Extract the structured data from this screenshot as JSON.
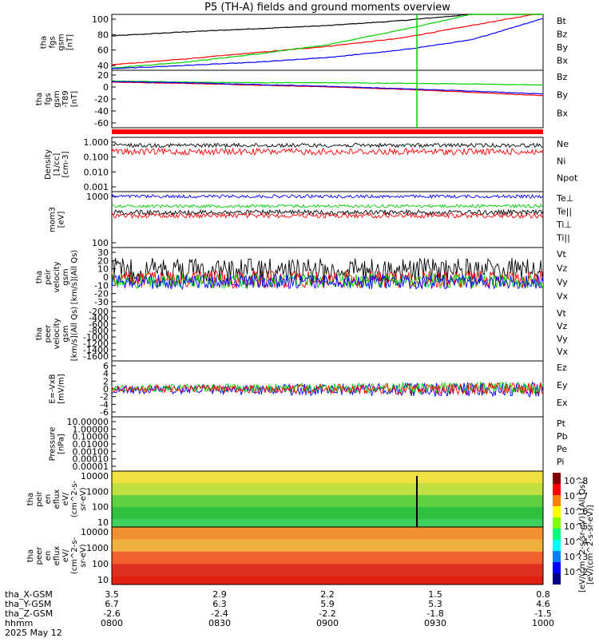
{
  "title": "P5 (TH-A) fields and ground moments overview",
  "date": "2025 May 12",
  "colors": {
    "black": "#000000",
    "red": "#ff0000",
    "green": "#00d000",
    "blue": "#0000ff"
  },
  "chart_data": [
    {
      "type": "line",
      "ylabel": [
        "tha",
        "fgs",
        "gsm",
        "[nT]"
      ],
      "yticks": [
        "100",
        "80",
        "60",
        "40"
      ],
      "ylim": [
        30,
        100
      ],
      "legend": [
        "Bt",
        "Bz",
        "By",
        "Bx"
      ],
      "series": [
        {
          "name": "Bt",
          "values": [
            73,
            78,
            82,
            86,
            92,
            100,
            105
          ]
        },
        {
          "name": "Bz",
          "values": [
            37,
            44,
            52,
            60,
            70,
            86,
            102
          ]
        },
        {
          "name": "By",
          "values": [
            33,
            40,
            50,
            62,
            80,
            100,
            110
          ]
        },
        {
          "name": "Bx",
          "values": [
            32,
            36,
            40,
            46,
            55,
            68,
            95
          ]
        }
      ]
    },
    {
      "type": "line",
      "ylabel": [
        "tha",
        "fgs",
        "gsm",
        "-T89",
        "[nT]"
      ],
      "yticks": [
        "20",
        "0",
        "-20",
        "-40",
        "-60"
      ],
      "ylim": [
        -75,
        22
      ],
      "legend": [
        "Bz",
        "By",
        "Bx"
      ],
      "series": [
        {
          "name": "Bz",
          "values": [
            2,
            0,
            -3,
            -6,
            -10,
            -15,
            -21
          ]
        },
        {
          "name": "By",
          "values": [
            4,
            2,
            1,
            1,
            0,
            -1,
            -3
          ]
        },
        {
          "name": "Bx",
          "values": [
            3,
            1,
            -2,
            -5,
            -9,
            -13,
            -18
          ]
        }
      ]
    },
    {
      "type": "line",
      "ylabel": [
        "Density",
        "[1/cc]",
        "[cm-3]"
      ],
      "yticks": [
        "1.000",
        "0.100",
        "0.010",
        "0.001"
      ],
      "scale": "log",
      "legend": [
        "Ne",
        "Ni",
        "Npot"
      ]
    },
    {
      "type": "line",
      "ylabel": [
        "mom3",
        "[eV]"
      ],
      "yticks": [
        "1000",
        "100"
      ],
      "scale": "log",
      "legend": [
        "Te⊥",
        "Te||",
        "Ti⊥",
        "Ti||"
      ]
    },
    {
      "type": "line",
      "ylabel": [
        "tha",
        "peir",
        "velocity",
        "gsm",
        "[km/s](All Qs)"
      ],
      "yticks": [
        "30",
        "20",
        "10",
        "0",
        "-10",
        "-20",
        "-30"
      ],
      "ylim": [
        -30,
        38
      ],
      "legend": [
        "Vt",
        "Vz",
        "Vy",
        "Vx"
      ]
    },
    {
      "type": "line",
      "ylabel": [
        "tha",
        "peer",
        "velocity",
        "gsm",
        "[km/s](All Qs)"
      ],
      "yticks": [
        "-200",
        "-400",
        "-600",
        "-800",
        "-1000",
        "-1200",
        "-1400",
        "-1600"
      ],
      "ylim": [
        -1650,
        -50
      ],
      "legend": [
        "Vt",
        "Vz",
        "Vy",
        "Vx"
      ]
    },
    {
      "type": "line",
      "ylabel": [
        "E=-VxB",
        "[mV/m]"
      ],
      "yticks": [
        "6",
        "4",
        "2",
        "0",
        "-2",
        "-4",
        "-6"
      ],
      "ylim": [
        -6.5,
        6.5
      ],
      "legend": [
        "Ez",
        "Ey",
        "Ex"
      ]
    },
    {
      "type": "line",
      "ylabel": [
        "Pressure",
        "[nPa]"
      ],
      "yticks": [
        "10.00000",
        "1.00000",
        "0.10000",
        "0.01000",
        "0.00100",
        "0.00010",
        "0.00001"
      ],
      "scale": "log",
      "legend": [
        "Pt",
        "Pb",
        "Pe",
        "Pi"
      ]
    },
    {
      "type": "heatmap",
      "ylabel": [
        "tha",
        "peir",
        "en",
        "eflux",
        "eV/",
        "(cm^2-s-",
        "sr-eV)"
      ],
      "yticks": [
        "10000",
        "1000",
        "100",
        "10"
      ],
      "scale": "log"
    },
    {
      "type": "heatmap",
      "ylabel": [
        "tha",
        "peer",
        "en",
        "eflux",
        "eV/",
        "(cm^2-s-",
        "sr-eV)"
      ],
      "yticks": [
        "10000",
        "1000",
        "100",
        "10"
      ],
      "scale": "log"
    }
  ],
  "colorbar": {
    "label": "[eV/(cm^2-s-sr-eV)]",
    "label_overprint": "[eV/(cm^2-s-sr-eV)] (All Qs)",
    "ticks": [
      "10^8",
      "10^7",
      "10^6",
      "10^5",
      "10^4",
      "10^3",
      "10^2"
    ]
  },
  "xaxis": {
    "rows": [
      {
        "label": "tha_X-GSM",
        "values": [
          "3.5",
          "2.9",
          "2.2",
          "1.5",
          "0.8"
        ]
      },
      {
        "label": "tha_Y-GSM",
        "values": [
          "6.7",
          "6.3",
          "5.9",
          "5.3",
          "4.6"
        ]
      },
      {
        "label": "tha_Z-GSM",
        "values": [
          "-2.6",
          "-2.4",
          "-2.2",
          "-1.8",
          "-1.5"
        ]
      },
      {
        "label": "hhmm",
        "values": [
          "0800",
          "0830",
          "0900",
          "0930",
          "1000"
        ]
      }
    ]
  }
}
